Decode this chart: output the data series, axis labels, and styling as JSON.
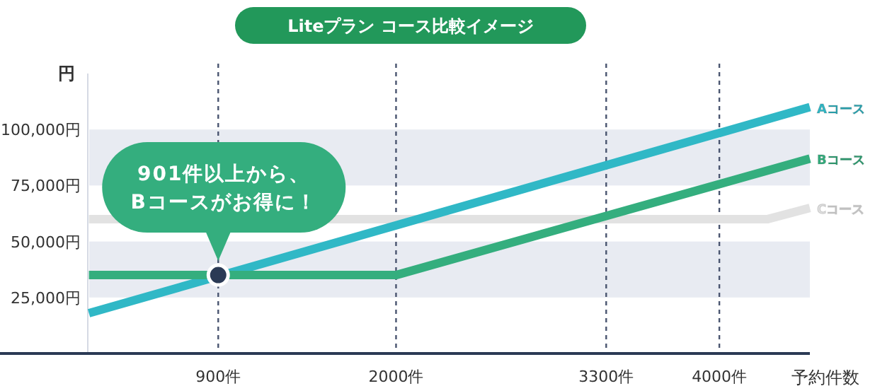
{
  "chart_data": {
    "type": "line",
    "title": "Liteプラン コース比較イメージ",
    "xlabel": "予約件数",
    "ylabel": "円",
    "xlim": [
      -450,
      4560
    ],
    "ylim": [
      0,
      125000
    ],
    "xticks": [
      {
        "value": 900,
        "label": "900件"
      },
      {
        "value": 2000,
        "label": "2000件"
      },
      {
        "value": 3300,
        "label": "3300件"
      },
      {
        "value": 4000,
        "label": "4000件"
      }
    ],
    "yticks": [
      {
        "value": 25000,
        "label": "25,000円"
      },
      {
        "value": 50000,
        "label": "50,000円"
      },
      {
        "value": 75000,
        "label": "75,000円"
      },
      {
        "value": 100000,
        "label": "100,000円"
      }
    ],
    "grid": "x",
    "legend": false,
    "bands": [
      {
        "axis": "y",
        "from": 25000,
        "to": 50000,
        "color": "#e8ebf2"
      },
      {
        "axis": "y",
        "from": 75000,
        "to": 100000,
        "color": "#e8ebf2"
      }
    ],
    "series": [
      {
        "name": "Cコース",
        "color": "#e2e2e2",
        "x": [
          100,
          4300,
          4560
        ],
        "values": [
          60000,
          60000,
          65000
        ]
      },
      {
        "name": "Aコース",
        "color": "#30b8c6",
        "x": [
          100,
          4560
        ],
        "values": [
          18000,
          110000
        ]
      },
      {
        "name": "Bコース",
        "color": "#34ae7e",
        "x": [
          100,
          2000,
          4560
        ],
        "values": [
          35000,
          35000,
          87000
        ]
      },
      {
        "type": "scatter",
        "marker": "circle",
        "color": "#2b3a55",
        "x": [
          900
        ],
        "values": [
          35000
        ]
      }
    ],
    "annotations": [
      "901件以上から、\nBコースがお得に！"
    ]
  }
}
